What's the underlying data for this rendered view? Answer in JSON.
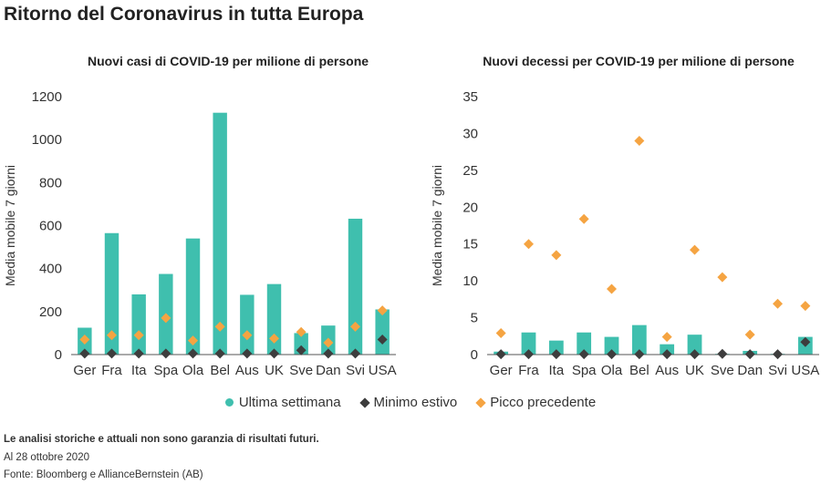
{
  "title": "Ritorno del Coronavirus in tutta Europa",
  "legend": {
    "series1": "Ultima settimana",
    "series2": "Minimo estivo",
    "series3": "Picco precedente"
  },
  "colors": {
    "bar": "#3fbfae",
    "min": "#3d3d3d",
    "peak": "#f5a442",
    "axis": "#555555",
    "grid": "#dddddd"
  },
  "footer": {
    "disclaimer": "Le analisi storiche e attuali non sono garanzia di risultati futuri.",
    "date": "Al 28 ottobre 2020",
    "source": "Fonte: Bloomberg e AllianceBernstein (AB)"
  },
  "chart_data": [
    {
      "type": "bar",
      "title": "Nuovi casi di COVID-19 per milione di persone",
      "ylabel": "Media mobile 7 giorni",
      "xlabel": "",
      "ylim": [
        0,
        1200
      ],
      "yticks": [
        0,
        200,
        400,
        600,
        800,
        1000,
        1200
      ],
      "categories": [
        "Ger",
        "Fra",
        "Ita",
        "Spa",
        "Ola",
        "Bel",
        "Aus",
        "UK",
        "Sve",
        "Dan",
        "Svi",
        "USA"
      ],
      "series": [
        {
          "name": "Ultima settimana",
          "kind": "bar",
          "values": [
            125,
            565,
            280,
            375,
            540,
            1125,
            278,
            328,
            100,
            135,
            632,
            210
          ]
        },
        {
          "name": "Minimo estivo",
          "kind": "diamond",
          "values": [
            5,
            5,
            5,
            5,
            5,
            5,
            5,
            5,
            20,
            5,
            5,
            70
          ]
        },
        {
          "name": "Picco precedente",
          "kind": "diamond",
          "values": [
            70,
            90,
            90,
            170,
            65,
            130,
            90,
            75,
            105,
            55,
            130,
            205
          ]
        }
      ]
    },
    {
      "type": "bar",
      "title": "Nuovi decessi per COVID-19 per milione di persone",
      "ylabel": "Media mobile 7 giorni",
      "xlabel": "",
      "ylim": [
        0,
        35
      ],
      "yticks": [
        0,
        5,
        10,
        15,
        20,
        25,
        30,
        35
      ],
      "categories": [
        "Ger",
        "Fra",
        "Ita",
        "Spa",
        "Ola",
        "Bel",
        "Aus",
        "UK",
        "Sve",
        "Dan",
        "Svi",
        "USA"
      ],
      "series": [
        {
          "name": "Ultima settimana",
          "kind": "bar",
          "values": [
            0.4,
            3.0,
            1.9,
            3.0,
            2.4,
            4.0,
            1.4,
            2.7,
            0.1,
            0.5,
            0.1,
            2.4
          ]
        },
        {
          "name": "Minimo estivo",
          "kind": "diamond",
          "values": [
            0.05,
            0.05,
            0.05,
            0.05,
            0.05,
            0.05,
            0.05,
            0.05,
            0.1,
            0.05,
            0.05,
            1.7
          ]
        },
        {
          "name": "Picco precedente",
          "kind": "diamond",
          "values": [
            2.9,
            15.0,
            13.5,
            18.4,
            8.9,
            29.0,
            2.4,
            14.2,
            10.5,
            2.7,
            6.9,
            6.6
          ]
        }
      ]
    }
  ]
}
